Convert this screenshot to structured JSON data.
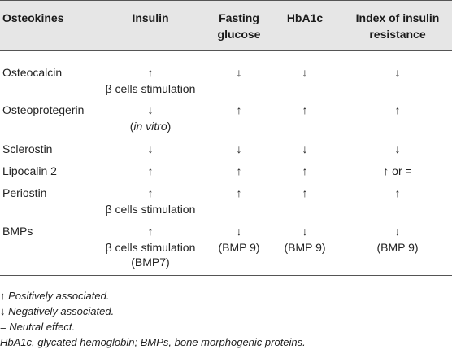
{
  "headers": {
    "col1": "Osteokines",
    "col2": "Insulin",
    "col3_line1": "Fasting",
    "col3_line2": "glucose",
    "col4": "HbA1c",
    "col5_line1": "Index of insulin",
    "col5_line2": "resistance"
  },
  "rows": [
    {
      "name": "Osteocalcin",
      "insulin": [
        "↑",
        "β cells stimulation"
      ],
      "glucose": [
        "↓"
      ],
      "hba1c": [
        "↓"
      ],
      "ir": [
        "↓"
      ]
    },
    {
      "name": "Osteoprotegerin",
      "insulin": [
        "↓",
        "(in vitro)"
      ],
      "glucose": [
        "↑"
      ],
      "hba1c": [
        "↑"
      ],
      "ir": [
        "↑"
      ]
    },
    {
      "name": "Sclerostin",
      "insulin": [
        "↓"
      ],
      "glucose": [
        "↓"
      ],
      "hba1c": [
        "↓"
      ],
      "ir": [
        "↓"
      ]
    },
    {
      "name": "Lipocalin 2",
      "insulin": [
        "↑"
      ],
      "glucose": [
        "↑"
      ],
      "hba1c": [
        "↑"
      ],
      "ir": [
        "↑ or ="
      ]
    },
    {
      "name": "Periostin",
      "insulin": [
        "↑",
        "β cells stimulation"
      ],
      "glucose": [
        "↑"
      ],
      "hba1c": [
        "↑"
      ],
      "ir": [
        "↑"
      ]
    },
    {
      "name": "BMPs",
      "insulin": [
        "↑",
        "β cells stimulation",
        "(BMP7)"
      ],
      "glucose": [
        "↓",
        "(BMP 9)"
      ],
      "hba1c": [
        "↓",
        "(BMP 9)"
      ],
      "ir": [
        "↓",
        "(BMP 9)"
      ]
    }
  ],
  "footnotes": {
    "pos_arrow": "↑",
    "pos_text": "Positively associated.",
    "neg_arrow": "↓",
    "neg_text": "Negatively associated.",
    "neu_sym": "=",
    "neu_text": "Neutral effect.",
    "abbrev": "HbA1c, glycated hemoglobin; BMPs, bone morphogenic proteins."
  }
}
